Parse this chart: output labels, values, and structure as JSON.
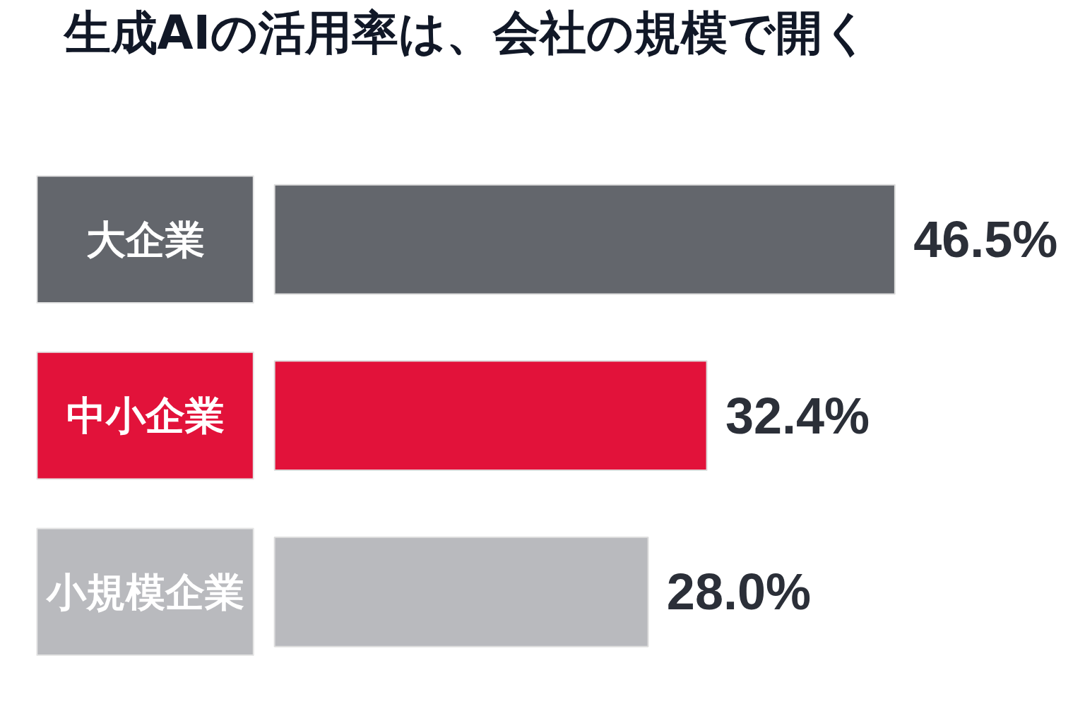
{
  "chart_data": {
    "type": "bar",
    "orientation": "horizontal",
    "title": "生成AIの活用率は、会社の規模で開く",
    "categories": [
      "大企業",
      "中小企業",
      "小規模企業"
    ],
    "values": [
      46.5,
      32.4,
      28.0
    ],
    "colors": [
      "#63666c",
      "#e2123a",
      "#b9babe"
    ],
    "value_labels": [
      "46.5%",
      "32.4%",
      "28.0%"
    ],
    "grid": false
  }
}
